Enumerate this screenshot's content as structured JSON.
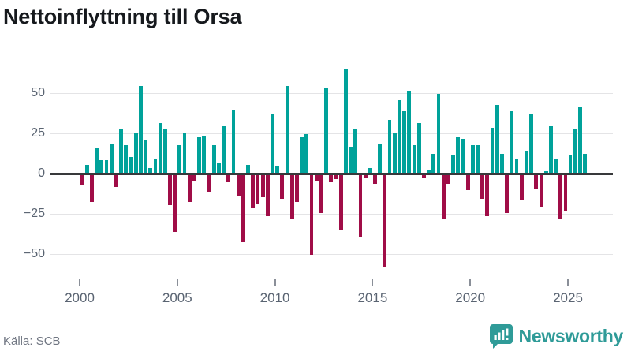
{
  "header": {
    "title": "Nettoinflyttning till Orsa"
  },
  "footer": {
    "source": "Källa: SCB",
    "logo_text": "Newsworthy"
  },
  "colors": {
    "positive": "#00a29a",
    "negative": "#a00d47",
    "axis": "#38393b",
    "grid": "#e4e4e6",
    "label": "#5a6472",
    "brand": "#2f9b98"
  },
  "chart_data": {
    "type": "bar",
    "title": "Nettoinflyttning till Orsa",
    "frequency": "quarterly",
    "start": "2000 Q1",
    "end": "2025 Q4",
    "xlabel": "",
    "ylabel": "",
    "ylim": [
      -66,
      66
    ],
    "yticks": [
      50,
      25,
      0,
      -25,
      -50
    ],
    "xticks_years": [
      2000,
      2005,
      2010,
      2015,
      2020,
      2025
    ],
    "grid": true,
    "values": [
      -7,
      5,
      -17,
      15,
      8,
      8,
      18,
      -8,
      27,
      17,
      10,
      25,
      54,
      20,
      3,
      9,
      31,
      27,
      -19,
      -36,
      17,
      25,
      -17,
      -4,
      22,
      23,
      -11,
      17,
      6,
      29,
      -5,
      39,
      -13,
      -42,
      5,
      -21,
      -18,
      -14,
      -26,
      37,
      4,
      -15,
      54,
      -28,
      -17,
      22,
      24,
      -50,
      -4,
      -24,
      53,
      -5,
      -3,
      -35,
      64,
      16,
      27,
      -39,
      -2,
      3,
      -6,
      18,
      -58,
      33,
      25,
      45,
      38,
      51,
      17,
      31,
      -2,
      2,
      12,
      49,
      -28,
      -6,
      11,
      22,
      21,
      -10,
      17,
      17,
      -15,
      -26,
      28,
      42,
      12,
      -24,
      38,
      9,
      -16,
      13,
      37,
      -9,
      -20,
      1,
      29,
      9,
      -28,
      -23,
      11,
      27,
      41,
      12
    ]
  }
}
